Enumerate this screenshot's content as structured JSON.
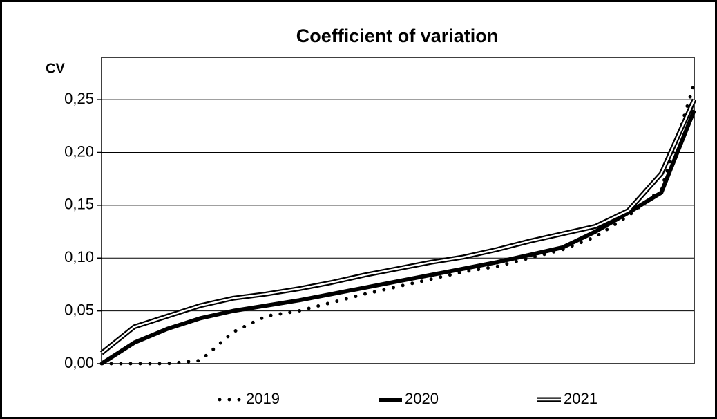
{
  "chart_data": {
    "type": "line",
    "title": "Coefficient of variation",
    "y_label": "CV",
    "categories": [
      null,
      null,
      null,
      null,
      null,
      null,
      null,
      null,
      null,
      null,
      null,
      null,
      null,
      null,
      null,
      null,
      null,
      null,
      null
    ],
    "series": [
      {
        "name": "2019",
        "color": "#000000",
        "style": "dotted",
        "values": [
          0,
          0,
          0,
          0.003,
          0.03,
          0.045,
          0.05,
          0.058,
          0.066,
          0.073,
          0.08,
          0.087,
          0.092,
          0.1,
          0.108,
          0.12,
          0.14,
          0.165,
          0.265
        ]
      },
      {
        "name": "2020",
        "color": "#000000",
        "style": "solid",
        "values": [
          0,
          0.02,
          0.033,
          0.043,
          0.05,
          0.055,
          0.06,
          0.066,
          0.072,
          0.078,
          0.084,
          0.09,
          0.096,
          0.103,
          0.11,
          0.125,
          0.143,
          0.162,
          0.24
        ]
      },
      {
        "name": "2021",
        "color": "#000000",
        "style": "double",
        "values": [
          0.01,
          0.035,
          0.045,
          0.055,
          0.062,
          0.066,
          0.071,
          0.077,
          0.084,
          0.09,
          0.096,
          0.101,
          0.108,
          0.116,
          0.123,
          0.13,
          0.145,
          0.18,
          0.25
        ]
      }
    ],
    "ylim": [
      0,
      0.29
    ],
    "yticks": [
      {
        "value": 0,
        "label": "0,00"
      },
      {
        "value": 0.05,
        "label": "0,05"
      },
      {
        "value": 0.1,
        "label": "0,10"
      },
      {
        "value": 0.15,
        "label": "0,15"
      },
      {
        "value": 0.2,
        "label": "0,20"
      },
      {
        "value": 0.25,
        "label": "0,25"
      }
    ],
    "grid": true,
    "legend": "bottom"
  }
}
